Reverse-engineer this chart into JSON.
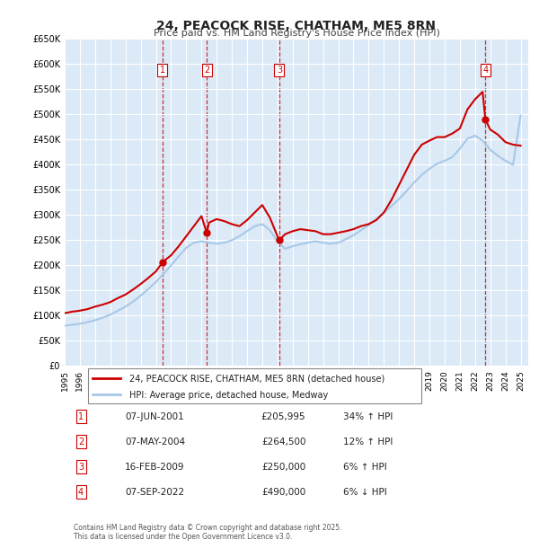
{
  "title": "24, PEACOCK RISE, CHATHAM, ME5 8RN",
  "subtitle": "Price paid vs. HM Land Registry's House Price Index (HPI)",
  "xlabel": "",
  "ylabel": "",
  "ylim": [
    0,
    650000
  ],
  "yticks": [
    0,
    50000,
    100000,
    150000,
    200000,
    250000,
    300000,
    350000,
    400000,
    450000,
    500000,
    550000,
    600000,
    650000
  ],
  "ytick_labels": [
    "£0",
    "£50K",
    "£100K",
    "£150K",
    "£200K",
    "£250K",
    "£300K",
    "£350K",
    "£400K",
    "£450K",
    "£500K",
    "£550K",
    "£600K",
    "£650K"
  ],
  "xlim_start": 1995.0,
  "xlim_end": 2025.5,
  "xticks": [
    1995,
    1996,
    1997,
    1998,
    1999,
    2000,
    2001,
    2002,
    2003,
    2004,
    2005,
    2006,
    2007,
    2008,
    2009,
    2010,
    2011,
    2012,
    2013,
    2014,
    2015,
    2016,
    2017,
    2018,
    2019,
    2020,
    2021,
    2022,
    2023,
    2024,
    2025
  ],
  "background_color": "#ffffff",
  "plot_bg_color": "#dce9f7",
  "grid_color": "#ffffff",
  "sale_color": "#cc0000",
  "hpi_color": "#a8c8e8",
  "sale_label": "24, PEACOCK RISE, CHATHAM, ME5 8RN (detached house)",
  "hpi_label": "HPI: Average price, detached house, Medway",
  "transaction_markers": [
    {
      "num": 1,
      "year": 2001.44,
      "price": 205995,
      "label": "07-JUN-2001",
      "amount": "£205,995",
      "change": "34% ↑ HPI"
    },
    {
      "num": 2,
      "year": 2004.35,
      "price": 264500,
      "label": "07-MAY-2004",
      "amount": "£264,500",
      "change": "12% ↑ HPI"
    },
    {
      "num": 3,
      "year": 2009.12,
      "price": 250000,
      "label": "16-FEB-2009",
      "amount": "£250,000",
      "change": "6% ↑ HPI"
    },
    {
      "num": 4,
      "year": 2022.68,
      "price": 490000,
      "label": "07-SEP-2022",
      "amount": "£490,000",
      "change": "6% ↓ HPI"
    }
  ],
  "vline_color": "#cc0000",
  "vline_style": "--",
  "footer_text": "Contains HM Land Registry data © Crown copyright and database right 2025.\nThis data is licensed under the Open Government Licence v3.0.",
  "sale_x": [
    1995.0,
    1995.5,
    1996.0,
    1996.5,
    1997.0,
    1997.5,
    1998.0,
    1998.5,
    1999.0,
    1999.5,
    2000.0,
    2000.5,
    2001.0,
    2001.44,
    2001.5,
    2002.0,
    2002.5,
    2003.0,
    2003.5,
    2004.0,
    2004.35,
    2004.5,
    2005.0,
    2005.5,
    2006.0,
    2006.5,
    2007.0,
    2007.5,
    2008.0,
    2008.5,
    2009.0,
    2009.12,
    2009.5,
    2010.0,
    2010.5,
    2011.0,
    2011.5,
    2012.0,
    2012.5,
    2013.0,
    2013.5,
    2014.0,
    2014.5,
    2015.0,
    2015.5,
    2016.0,
    2016.5,
    2017.0,
    2017.5,
    2018.0,
    2018.5,
    2019.0,
    2019.5,
    2020.0,
    2020.5,
    2021.0,
    2021.5,
    2022.0,
    2022.5,
    2022.68,
    2023.0,
    2023.5,
    2024.0,
    2024.5,
    2025.0
  ],
  "sale_y": [
    105000,
    108000,
    110000,
    113000,
    118000,
    122000,
    127000,
    135000,
    142000,
    152000,
    163000,
    175000,
    188000,
    205995,
    208000,
    220000,
    238000,
    258000,
    278000,
    298000,
    264500,
    285000,
    292000,
    288000,
    282000,
    278000,
    290000,
    305000,
    320000,
    295000,
    258000,
    250000,
    262000,
    268000,
    272000,
    270000,
    268000,
    262000,
    262000,
    265000,
    268000,
    272000,
    278000,
    282000,
    290000,
    305000,
    330000,
    360000,
    390000,
    420000,
    440000,
    448000,
    455000,
    455000,
    462000,
    472000,
    510000,
    530000,
    545000,
    490000,
    470000,
    460000,
    445000,
    440000,
    438000
  ],
  "hpi_x": [
    1995.0,
    1995.5,
    1996.0,
    1996.5,
    1997.0,
    1997.5,
    1998.0,
    1998.5,
    1999.0,
    1999.5,
    2000.0,
    2000.5,
    2001.0,
    2001.5,
    2002.0,
    2002.5,
    2003.0,
    2003.5,
    2004.0,
    2004.5,
    2005.0,
    2005.5,
    2006.0,
    2006.5,
    2007.0,
    2007.5,
    2008.0,
    2008.5,
    2009.0,
    2009.5,
    2010.0,
    2010.5,
    2011.0,
    2011.5,
    2012.0,
    2012.5,
    2013.0,
    2013.5,
    2014.0,
    2014.5,
    2015.0,
    2015.5,
    2016.0,
    2016.5,
    2017.0,
    2017.5,
    2018.0,
    2018.5,
    2019.0,
    2019.5,
    2020.0,
    2020.5,
    2021.0,
    2021.5,
    2022.0,
    2022.5,
    2023.0,
    2023.5,
    2024.0,
    2024.5,
    2025.0
  ],
  "hpi_y": [
    80000,
    82000,
    84000,
    87000,
    91000,
    96000,
    102000,
    110000,
    118000,
    128000,
    140000,
    153000,
    167000,
    183000,
    200000,
    218000,
    235000,
    245000,
    248000,
    245000,
    243000,
    245000,
    250000,
    258000,
    268000,
    278000,
    282000,
    270000,
    248000,
    233000,
    238000,
    242000,
    245000,
    248000,
    245000,
    243000,
    245000,
    252000,
    260000,
    270000,
    280000,
    292000,
    305000,
    318000,
    332000,
    348000,
    365000,
    380000,
    392000,
    402000,
    408000,
    415000,
    432000,
    452000,
    458000,
    448000,
    430000,
    418000,
    408000,
    400000,
    498000
  ]
}
